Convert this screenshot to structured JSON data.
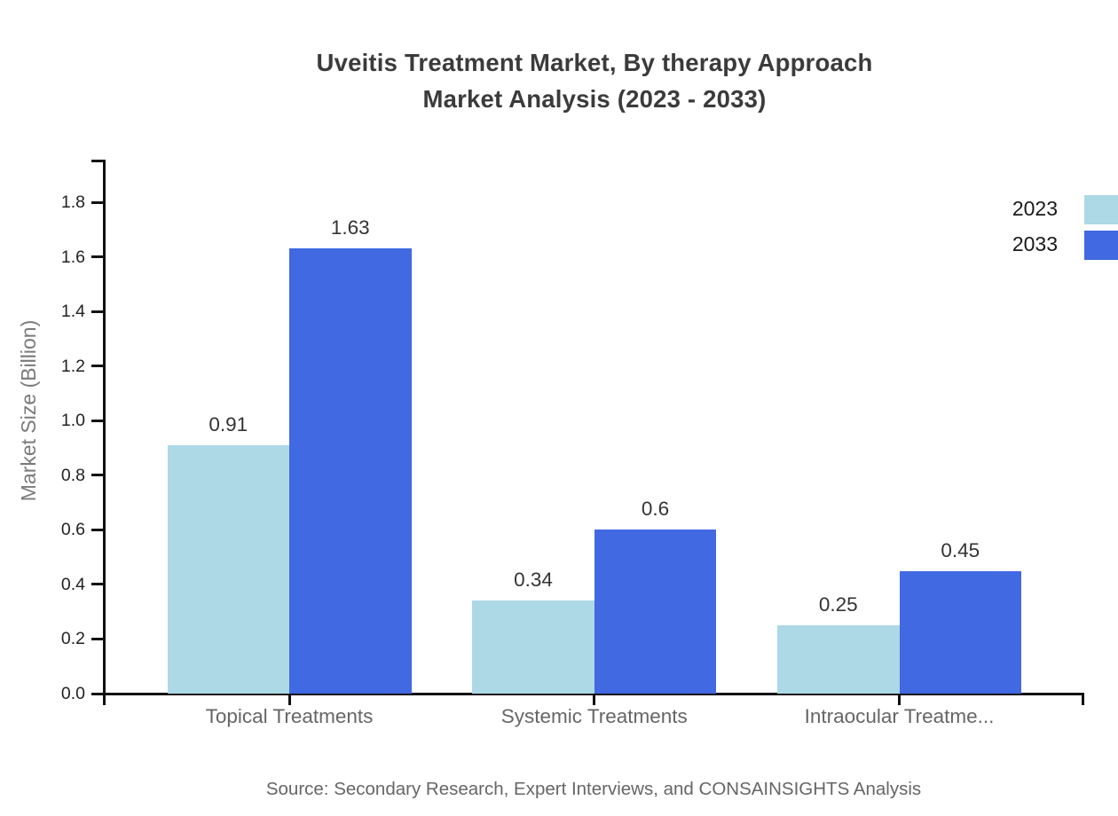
{
  "title": {
    "line1": "Uveitis Treatment Market, By therapy Approach",
    "line2": "Market Analysis (2023 - 2033)"
  },
  "source": "Source: Secondary Research, Expert Interviews, and CONSAINSIGHTS Analysis",
  "chart_data": {
    "type": "bar",
    "title": "Uveitis Treatment Market, By therapy Approach Market Analysis (2023 - 2033)",
    "categories": [
      "Topical Treatments",
      "Systemic Treatments",
      "Intraocular Treatme..."
    ],
    "series": [
      {
        "name": "2023",
        "color": "#add8e6",
        "values": [
          0.91,
          0.34,
          0.25
        ]
      },
      {
        "name": "2033",
        "color": "#4169e1",
        "values": [
          1.63,
          0.6,
          0.45
        ]
      }
    ],
    "xlabel": "",
    "ylabel": "Market Size (Billion)",
    "ylim": [
      0,
      1.95
    ],
    "ytick_step": 0.2,
    "ytick_labels": [
      "0.0",
      "0.2",
      "0.4",
      "0.6",
      "0.8",
      "1.0",
      "1.2",
      "1.4",
      "1.6",
      "1.8"
    ],
    "grid": false,
    "legend_position": "top-right",
    "value_labels_shown": true
  },
  "colors": {
    "axis": "#111111",
    "tick_label": "#222222",
    "category_label": "#666666",
    "value_label": "#333333",
    "title_text": "#3b3b3b",
    "source_text": "#666666",
    "y_axis_title": "#7a7a7a",
    "series_2023": "#add8e6",
    "series_2033": "#4169e1"
  }
}
